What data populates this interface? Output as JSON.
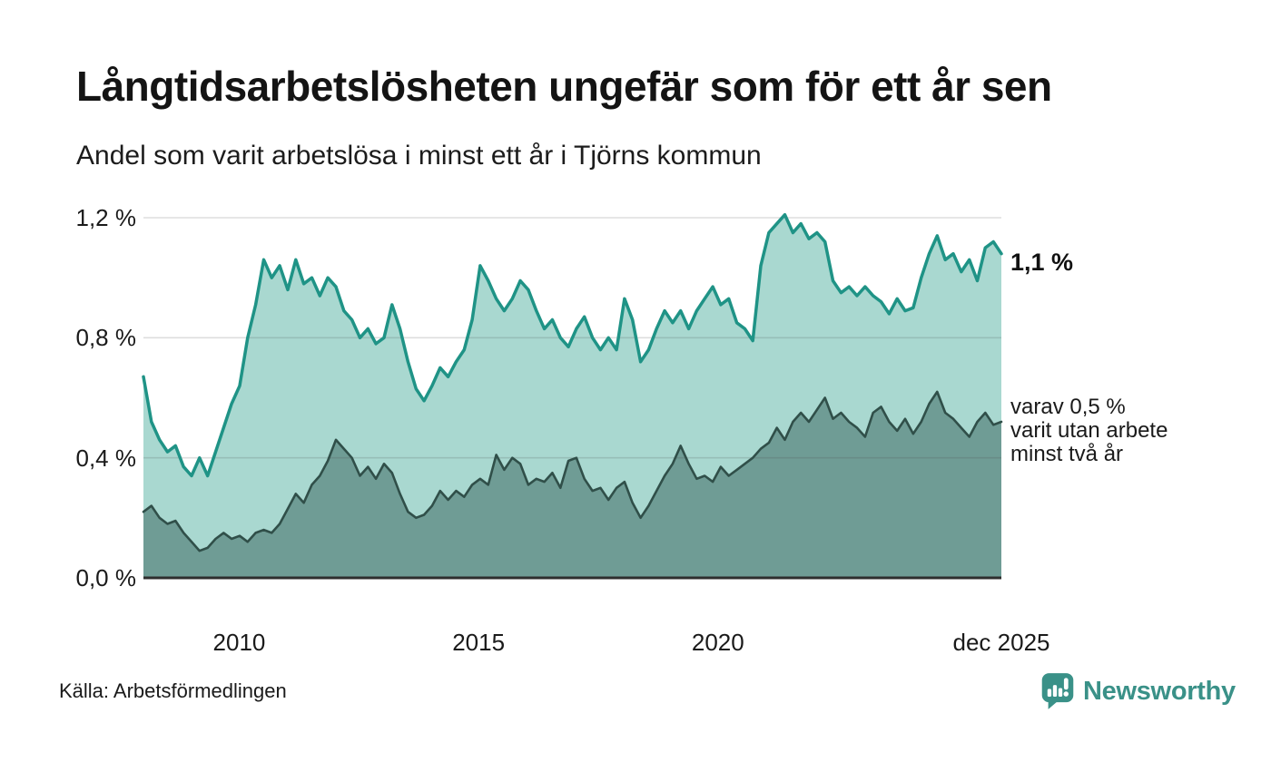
{
  "header": {
    "title": "Långtidsarbetslösheten ungefär som för ett år sen",
    "subtitle": "Andel som varit arbetslösa i minst ett år i Tjörns kommun"
  },
  "chart_data": {
    "type": "area",
    "title": "Långtidsarbetslösheten ungefär som för ett år sen",
    "subtitle": "Andel som varit arbetslösa i minst ett år i Tjörns kommun",
    "unit": "%",
    "x_start": 2008.0,
    "x_end": 2025.92,
    "ylim": [
      0,
      1.2
    ],
    "grid": true,
    "y_ticks": [
      {
        "label": "0,0 %",
        "v": 0.0
      },
      {
        "label": "0,4 %",
        "v": 0.4
      },
      {
        "label": "0,8 %",
        "v": 0.8
      },
      {
        "label": "1,2 %",
        "v": 1.2
      }
    ],
    "x_ticks": [
      {
        "label": "2010",
        "t": 2010
      },
      {
        "label": "2015",
        "t": 2015
      },
      {
        "label": "2020",
        "t": 2020
      },
      {
        "label": "dec 2025",
        "t": 2025.92
      }
    ],
    "colors": {
      "total_line": "#1f9386",
      "total_fill": "#a9d8d0",
      "two_year_line": "#304f49",
      "two_year_fill": "#6f9c95",
      "gridline": "rgba(70,70,70,0.18)",
      "axis": "#2e2e2e",
      "brand_teal": "#3a9188"
    },
    "series": [
      {
        "name": "Andel arbetslösa minst ett år",
        "end_label": "1,1 %",
        "values": [
          0.67,
          0.52,
          0.46,
          0.42,
          0.44,
          0.37,
          0.34,
          0.4,
          0.34,
          0.42,
          0.5,
          0.58,
          0.64,
          0.8,
          0.91,
          1.06,
          1.0,
          1.04,
          0.96,
          1.06,
          0.98,
          1.0,
          0.94,
          1.0,
          0.97,
          0.89,
          0.86,
          0.8,
          0.83,
          0.78,
          0.8,
          0.91,
          0.83,
          0.72,
          0.63,
          0.59,
          0.64,
          0.7,
          0.67,
          0.72,
          0.76,
          0.86,
          1.04,
          0.99,
          0.93,
          0.89,
          0.93,
          0.99,
          0.96,
          0.89,
          0.83,
          0.86,
          0.8,
          0.77,
          0.83,
          0.87,
          0.8,
          0.76,
          0.8,
          0.76,
          0.93,
          0.86,
          0.72,
          0.76,
          0.83,
          0.89,
          0.85,
          0.89,
          0.83,
          0.89,
          0.93,
          0.97,
          0.91,
          0.93,
          0.85,
          0.83,
          0.79,
          1.04,
          1.15,
          1.18,
          1.21,
          1.15,
          1.18,
          1.13,
          1.15,
          1.12,
          0.99,
          0.95,
          0.97,
          0.94,
          0.97,
          0.94,
          0.92,
          0.88,
          0.93,
          0.89,
          0.9,
          1.0,
          1.08,
          1.14,
          1.06,
          1.08,
          1.02,
          1.06,
          0.99,
          1.1,
          1.12,
          1.08
        ]
      },
      {
        "name": "Varav arbetslösa minst två år",
        "end_label": "varav 0,5 % varit utan arbete minst två år",
        "values": [
          0.22,
          0.24,
          0.2,
          0.18,
          0.19,
          0.15,
          0.12,
          0.09,
          0.1,
          0.13,
          0.15,
          0.13,
          0.14,
          0.12,
          0.15,
          0.16,
          0.15,
          0.18,
          0.23,
          0.28,
          0.25,
          0.31,
          0.34,
          0.39,
          0.46,
          0.43,
          0.4,
          0.34,
          0.37,
          0.33,
          0.38,
          0.35,
          0.28,
          0.22,
          0.2,
          0.21,
          0.24,
          0.29,
          0.26,
          0.29,
          0.27,
          0.31,
          0.33,
          0.31,
          0.41,
          0.36,
          0.4,
          0.38,
          0.31,
          0.33,
          0.32,
          0.35,
          0.3,
          0.39,
          0.4,
          0.33,
          0.29,
          0.3,
          0.26,
          0.3,
          0.32,
          0.25,
          0.2,
          0.24,
          0.29,
          0.34,
          0.38,
          0.44,
          0.38,
          0.33,
          0.34,
          0.32,
          0.37,
          0.34,
          0.36,
          0.38,
          0.4,
          0.43,
          0.45,
          0.5,
          0.46,
          0.52,
          0.55,
          0.52,
          0.56,
          0.6,
          0.53,
          0.55,
          0.52,
          0.5,
          0.47,
          0.55,
          0.57,
          0.52,
          0.49,
          0.53,
          0.48,
          0.52,
          0.58,
          0.62,
          0.55,
          0.53,
          0.5,
          0.47,
          0.52,
          0.55,
          0.51,
          0.52
        ]
      }
    ]
  },
  "annotations": {
    "latest_total": "1,1 %",
    "secondary": [
      "varav 0,5 %",
      "varit utan arbete",
      "minst två år"
    ]
  },
  "footer": {
    "source": "Källa: Arbetsförmedlingen",
    "brand": "Newsworthy"
  }
}
